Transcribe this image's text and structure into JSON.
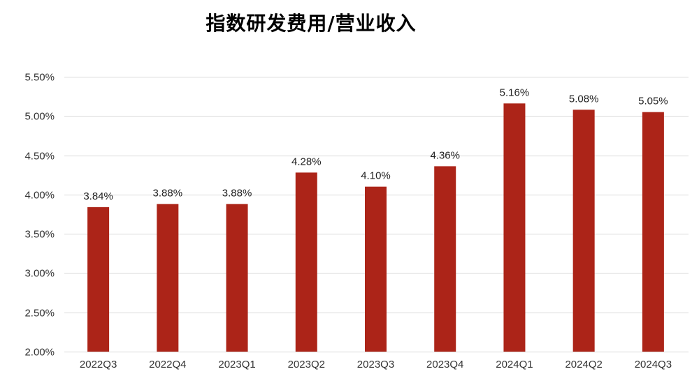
{
  "chart_data": {
    "type": "bar",
    "title": "指数研发费用/营业收入",
    "categories": [
      "2022Q3",
      "2022Q4",
      "2023Q1",
      "2023Q2",
      "2023Q3",
      "2023Q4",
      "2024Q1",
      "2024Q2",
      "2024Q3"
    ],
    "values": [
      3.84,
      3.88,
      3.88,
      4.28,
      4.1,
      4.36,
      5.16,
      5.08,
      5.05
    ],
    "data_labels": [
      "3.84%",
      "3.88%",
      "3.88%",
      "4.28%",
      "4.10%",
      "4.36%",
      "5.16%",
      "5.08%",
      "5.05%"
    ],
    "ylim": [
      2.0,
      5.5
    ],
    "y_ticks": [
      2.0,
      2.5,
      3.0,
      3.5,
      4.0,
      4.5,
      5.0,
      5.5
    ],
    "y_tick_labels": [
      "2.00%",
      "2.50%",
      "3.00%",
      "3.50%",
      "4.00%",
      "4.50%",
      "5.00%",
      "5.50%"
    ],
    "xlabel": "",
    "ylabel": "",
    "grid": true,
    "legend": "none",
    "bar_color": "#ac2418"
  }
}
